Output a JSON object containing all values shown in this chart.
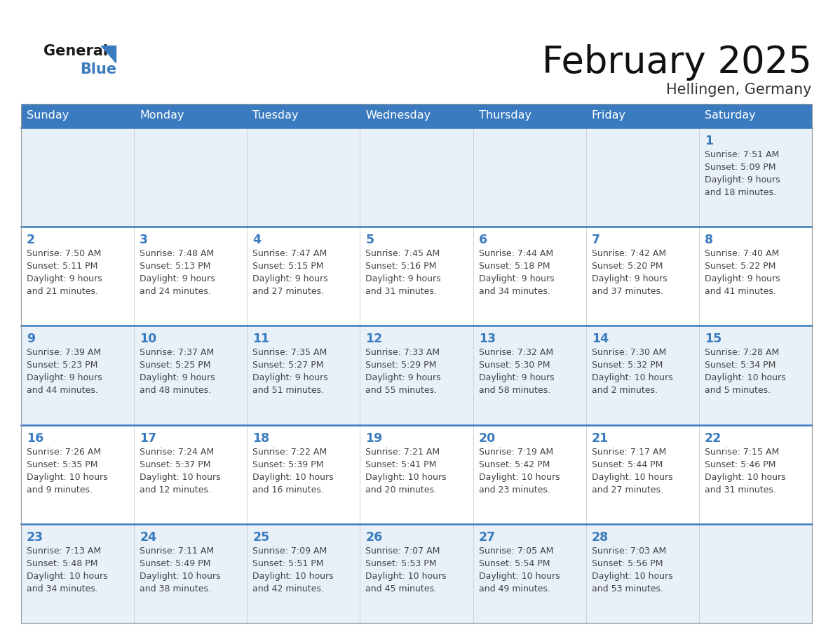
{
  "title": "February 2025",
  "subtitle": "Hellingen, Germany",
  "header_bg": "#3a7bbf",
  "header_text_color": "#ffffff",
  "day_names": [
    "Sunday",
    "Monday",
    "Tuesday",
    "Wednesday",
    "Thursday",
    "Friday",
    "Saturday"
  ],
  "row_bg_odd": "#e8f0f8",
  "row_bg_even": "#ffffff",
  "divider_color": "#3a7bbf",
  "date_color": "#3a7bbf",
  "text_color": "#444444",
  "calendar": [
    [
      null,
      null,
      null,
      null,
      null,
      null,
      {
        "day": "1",
        "sunrise": "7:51 AM",
        "sunset": "5:09 PM",
        "daylight": "9 hours",
        "daylight2": "and 18 minutes."
      }
    ],
    [
      {
        "day": "2",
        "sunrise": "7:50 AM",
        "sunset": "5:11 PM",
        "daylight": "9 hours",
        "daylight2": "and 21 minutes."
      },
      {
        "day": "3",
        "sunrise": "7:48 AM",
        "sunset": "5:13 PM",
        "daylight": "9 hours",
        "daylight2": "and 24 minutes."
      },
      {
        "day": "4",
        "sunrise": "7:47 AM",
        "sunset": "5:15 PM",
        "daylight": "9 hours",
        "daylight2": "and 27 minutes."
      },
      {
        "day": "5",
        "sunrise": "7:45 AM",
        "sunset": "5:16 PM",
        "daylight": "9 hours",
        "daylight2": "and 31 minutes."
      },
      {
        "day": "6",
        "sunrise": "7:44 AM",
        "sunset": "5:18 PM",
        "daylight": "9 hours",
        "daylight2": "and 34 minutes."
      },
      {
        "day": "7",
        "sunrise": "7:42 AM",
        "sunset": "5:20 PM",
        "daylight": "9 hours",
        "daylight2": "and 37 minutes."
      },
      {
        "day": "8",
        "sunrise": "7:40 AM",
        "sunset": "5:22 PM",
        "daylight": "9 hours",
        "daylight2": "and 41 minutes."
      }
    ],
    [
      {
        "day": "9",
        "sunrise": "7:39 AM",
        "sunset": "5:23 PM",
        "daylight": "9 hours",
        "daylight2": "and 44 minutes."
      },
      {
        "day": "10",
        "sunrise": "7:37 AM",
        "sunset": "5:25 PM",
        "daylight": "9 hours",
        "daylight2": "and 48 minutes."
      },
      {
        "day": "11",
        "sunrise": "7:35 AM",
        "sunset": "5:27 PM",
        "daylight": "9 hours",
        "daylight2": "and 51 minutes."
      },
      {
        "day": "12",
        "sunrise": "7:33 AM",
        "sunset": "5:29 PM",
        "daylight": "9 hours",
        "daylight2": "and 55 minutes."
      },
      {
        "day": "13",
        "sunrise": "7:32 AM",
        "sunset": "5:30 PM",
        "daylight": "9 hours",
        "daylight2": "and 58 minutes."
      },
      {
        "day": "14",
        "sunrise": "7:30 AM",
        "sunset": "5:32 PM",
        "daylight": "10 hours",
        "daylight2": "and 2 minutes."
      },
      {
        "day": "15",
        "sunrise": "7:28 AM",
        "sunset": "5:34 PM",
        "daylight": "10 hours",
        "daylight2": "and 5 minutes."
      }
    ],
    [
      {
        "day": "16",
        "sunrise": "7:26 AM",
        "sunset": "5:35 PM",
        "daylight": "10 hours",
        "daylight2": "and 9 minutes."
      },
      {
        "day": "17",
        "sunrise": "7:24 AM",
        "sunset": "5:37 PM",
        "daylight": "10 hours",
        "daylight2": "and 12 minutes."
      },
      {
        "day": "18",
        "sunrise": "7:22 AM",
        "sunset": "5:39 PM",
        "daylight": "10 hours",
        "daylight2": "and 16 minutes."
      },
      {
        "day": "19",
        "sunrise": "7:21 AM",
        "sunset": "5:41 PM",
        "daylight": "10 hours",
        "daylight2": "and 20 minutes."
      },
      {
        "day": "20",
        "sunrise": "7:19 AM",
        "sunset": "5:42 PM",
        "daylight": "10 hours",
        "daylight2": "and 23 minutes."
      },
      {
        "day": "21",
        "sunrise": "7:17 AM",
        "sunset": "5:44 PM",
        "daylight": "10 hours",
        "daylight2": "and 27 minutes."
      },
      {
        "day": "22",
        "sunrise": "7:15 AM",
        "sunset": "5:46 PM",
        "daylight": "10 hours",
        "daylight2": "and 31 minutes."
      }
    ],
    [
      {
        "day": "23",
        "sunrise": "7:13 AM",
        "sunset": "5:48 PM",
        "daylight": "10 hours",
        "daylight2": "and 34 minutes."
      },
      {
        "day": "24",
        "sunrise": "7:11 AM",
        "sunset": "5:49 PM",
        "daylight": "10 hours",
        "daylight2": "and 38 minutes."
      },
      {
        "day": "25",
        "sunrise": "7:09 AM",
        "sunset": "5:51 PM",
        "daylight": "10 hours",
        "daylight2": "and 42 minutes."
      },
      {
        "day": "26",
        "sunrise": "7:07 AM",
        "sunset": "5:53 PM",
        "daylight": "10 hours",
        "daylight2": "and 45 minutes."
      },
      {
        "day": "27",
        "sunrise": "7:05 AM",
        "sunset": "5:54 PM",
        "daylight": "10 hours",
        "daylight2": "and 49 minutes."
      },
      {
        "day": "28",
        "sunrise": "7:03 AM",
        "sunset": "5:56 PM",
        "daylight": "10 hours",
        "daylight2": "and 53 minutes."
      },
      null
    ]
  ]
}
